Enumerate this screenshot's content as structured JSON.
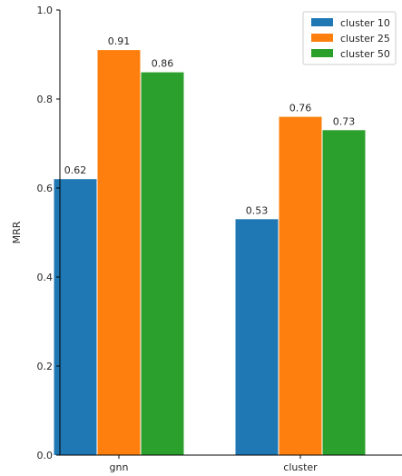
{
  "chart_data": {
    "type": "bar",
    "title": "",
    "xlabel": "",
    "ylabel": "MRR",
    "ylim": [
      0,
      1.0
    ],
    "yticks": [
      "0.0",
      "0.2",
      "0.4",
      "0.6",
      "0.8",
      "1.0"
    ],
    "categories": [
      "gnn",
      "cluster"
    ],
    "series": [
      {
        "name": "cluster 10",
        "values": [
          0.62,
          0.53
        ],
        "labels": [
          "0.62",
          "0.53"
        ],
        "color": "#1f77b4"
      },
      {
        "name": "cluster 25",
        "values": [
          0.91,
          0.76
        ],
        "labels": [
          "0.91",
          "0.76"
        ],
        "color": "#ff7f0e"
      },
      {
        "name": "cluster 50",
        "values": [
          0.86,
          0.73
        ],
        "labels": [
          "0.86",
          "0.73"
        ],
        "color": "#2ca02c"
      }
    ],
    "grid": false,
    "legend": "top-right"
  }
}
